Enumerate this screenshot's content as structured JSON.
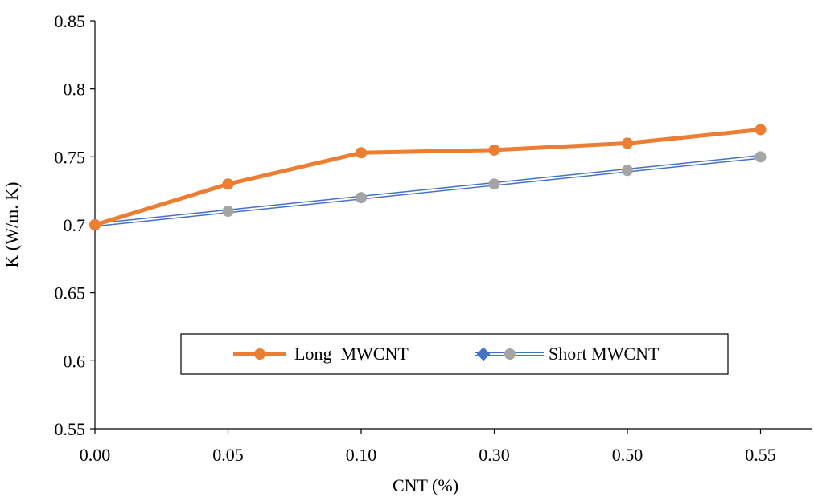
{
  "chart_data": {
    "type": "line",
    "categories": [
      "0.00",
      "0.05",
      "0.10",
      "0.30",
      "0.50",
      "0.55"
    ],
    "series": [
      {
        "name": "Long  MWCNT",
        "values": [
          0.7,
          0.73,
          0.753,
          0.755,
          0.76,
          0.77
        ],
        "line_color": "#ED7D31",
        "marker_color": "#ED7D31",
        "style": "thick-solid"
      },
      {
        "name": "Short MWCNT",
        "values": [
          0.7,
          0.71,
          0.72,
          0.73,
          0.74,
          0.75
        ],
        "line_color": "#4472C4",
        "marker_color": "#A5A5A5",
        "legend_marker_color": "#4472C4",
        "style": "double-line"
      }
    ],
    "xlabel": "CNT (%)",
    "ylabel": "K (W/m. K)",
    "ylim": [
      0.55,
      0.85
    ],
    "yticks": [
      "0.55",
      "0.6",
      "0.65",
      "0.7",
      "0.75",
      "0.8",
      "0.85"
    ],
    "grid": false,
    "legend_position": "inside-lower-center"
  }
}
